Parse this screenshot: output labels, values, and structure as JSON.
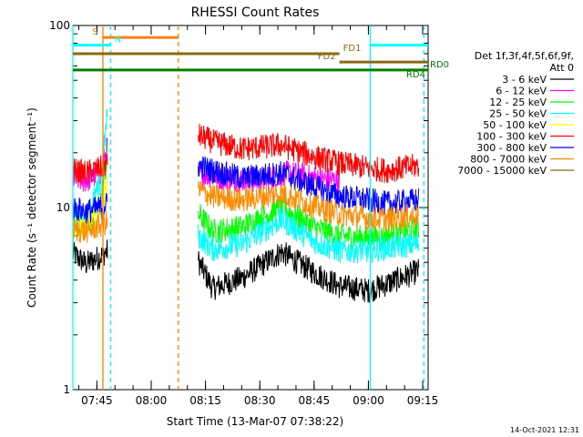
{
  "chart_data": {
    "type": "line",
    "title": "RHESSI Count Rates",
    "xlabel": "Start Time (13-Mar-07 07:38:22)",
    "ylabel": "Count Rate (s⁻¹ detector segment⁻¹)",
    "y_scale": "log",
    "ylim": [
      1,
      100
    ],
    "xlim": [
      "07:38:22",
      "09:16:30"
    ],
    "x_ticks": [
      "07:45",
      "08:00",
      "08:15",
      "08:30",
      "08:45",
      "09:00",
      "09:15"
    ],
    "y_ticks": [
      "1",
      "10",
      "100"
    ],
    "grid": false,
    "legend_header": [
      "Det 1f,3f,4f,5f,6f,9f,",
      "Att 0"
    ],
    "legend_position": "right",
    "series": [
      {
        "name": "3 - 6 keV",
        "color": "#000000",
        "x": [
          "07:38:22",
          "07:42",
          "07:46",
          "07:48",
          "08:13",
          "08:17",
          "08:25",
          "08:36",
          "08:45",
          "08:52",
          "09:00",
          "09:05",
          "09:14"
        ],
        "y": [
          5.6,
          4.9,
          5.4,
          5.8,
          5.1,
          3.6,
          4.1,
          5.7,
          4.4,
          3.7,
          3.5,
          3.8,
          4.5
        ]
      },
      {
        "name": "6 - 12 keV",
        "color": "#ff00ff",
        "x": [
          "07:38:22",
          "07:42",
          "07:46",
          "07:48",
          "08:13",
          "08:20",
          "08:30",
          "08:38",
          "08:46",
          "08:52"
        ],
        "y": [
          14.5,
          14.0,
          15.5,
          22.0,
          15.5,
          14.5,
          14.0,
          15.5,
          14.5,
          14.0
        ]
      },
      {
        "name": "12 - 25 keV",
        "color": "#00ff00",
        "x": [
          "07:38:22",
          "07:42",
          "07:46",
          "07:48",
          "08:13",
          "08:17",
          "08:25",
          "08:36",
          "08:45",
          "08:52",
          "09:00",
          "09:05",
          "09:14"
        ],
        "y": [
          8.5,
          8.2,
          10.5,
          20.0,
          9.3,
          7.4,
          7.8,
          10.0,
          7.8,
          7.0,
          6.8,
          7.0,
          7.7
        ]
      },
      {
        "name": "25 - 50 keV",
        "color": "#00ffff",
        "x": [
          "07:38:22",
          "07:42",
          "07:46",
          "07:48",
          "08:13",
          "08:17",
          "08:25",
          "08:36",
          "08:45",
          "08:52",
          "09:00",
          "09:05",
          "09:14"
        ],
        "y": [
          9.2,
          8.8,
          13.5,
          35.0,
          7.0,
          5.9,
          6.3,
          8.6,
          6.5,
          5.8,
          5.8,
          6.0,
          6.3
        ]
      },
      {
        "name": "50 - 100 keV",
        "color": "#ffff00",
        "x": [
          "07:38:22",
          "07:42",
          "07:46",
          "07:48"
        ],
        "y": [
          8.0,
          8.0,
          9.5,
          14.0
        ]
      },
      {
        "name": "100 - 300 keV",
        "color": "#ff0000",
        "x": [
          "07:38:22",
          "07:42",
          "07:46",
          "07:48",
          "08:13",
          "08:17",
          "08:25",
          "08:36",
          "08:45",
          "08:52",
          "09:00",
          "09:05",
          "09:14"
        ],
        "y": [
          16.0,
          15.5,
          16.5,
          17.5,
          25.0,
          23.0,
          21.0,
          22.0,
          19.0,
          17.5,
          16.5,
          16.0,
          17.0
        ]
      },
      {
        "name": "300 - 800 keV",
        "color": "#0000ff",
        "x": [
          "07:38:22",
          "07:42",
          "07:46",
          "07:48",
          "08:13",
          "08:17",
          "08:25",
          "08:36",
          "08:45",
          "08:52",
          "09:00",
          "09:05",
          "09:14"
        ],
        "y": [
          10.0,
          9.5,
          10.0,
          10.5,
          17.0,
          16.0,
          14.5,
          15.5,
          13.0,
          11.5,
          11.0,
          10.5,
          11.0
        ]
      },
      {
        "name": "800 - 7000 keV",
        "color": "#ff8c00",
        "x": [
          "07:38:22",
          "07:42",
          "07:46",
          "07:48",
          "08:13",
          "08:17",
          "08:25",
          "08:36",
          "08:45",
          "08:52",
          "09:00",
          "09:05",
          "09:14"
        ],
        "y": [
          7.6,
          7.4,
          8.0,
          8.3,
          12.5,
          11.5,
          11.0,
          12.0,
          10.2,
          9.2,
          8.8,
          8.6,
          9.1
        ]
      },
      {
        "name": "7000 - 15000 keV",
        "color": "#8b6914",
        "x": [],
        "y": []
      }
    ],
    "annotations": [
      {
        "label": "S",
        "color": "#ff8000",
        "bar": [
          "07:46:40",
          "08:07:30"
        ],
        "level": 86
      },
      {
        "label": "N",
        "color": "#00ffff",
        "bar": [
          "07:38:22",
          "07:48:50"
        ],
        "level": 78
      },
      {
        "label": "",
        "color": "#00ffff",
        "bar": [
          "09:00:30",
          "09:16:30"
        ],
        "level": 78
      },
      {
        "label": "FD1",
        "color": "#8b6914",
        "bar": [
          "07:38:22",
          "08:52:00"
        ],
        "level": 70
      },
      {
        "label": "FD2",
        "color": "#8b6914",
        "bar": [
          "08:52:00",
          "09:16:30"
        ],
        "level": 63
      },
      {
        "label": "RD0",
        "color": "#008000",
        "bar": [
          "07:38:22",
          "09:16:30"
        ],
        "level": 57
      },
      {
        "label": "RD4",
        "color": "#008000",
        "bar": [],
        "level": 57
      }
    ],
    "vlines": [
      {
        "time": "07:38:22",
        "color": "#00ffff",
        "style": "solid"
      },
      {
        "time": "07:46:40",
        "color": "#ff8000",
        "style": "solid"
      },
      {
        "time": "07:48:50",
        "color": "#00ffff",
        "style": "dashed"
      },
      {
        "time": "08:07:30",
        "color": "#ff8000",
        "style": "dashed"
      },
      {
        "time": "09:00:30",
        "color": "#00ffff",
        "style": "solid"
      },
      {
        "time": "09:15:20",
        "color": "#00ffff",
        "style": "dashed"
      }
    ]
  },
  "footer": {
    "timestamp": "14-Oct-2021 12:31"
  }
}
